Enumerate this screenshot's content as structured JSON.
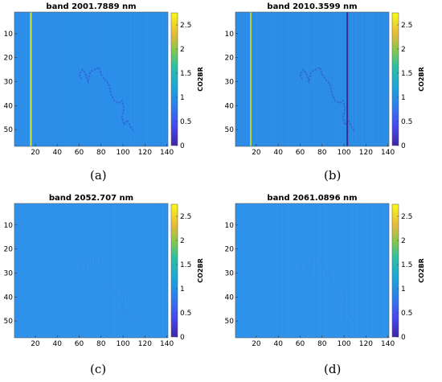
{
  "chart_data": [
    {
      "type": "heatmap",
      "caption": "(a)",
      "title": "band 2001.7889 nm",
      "colorbar_label": "CO2BR",
      "xlim": [
        1,
        141
      ],
      "ylim": [
        1,
        57
      ],
      "x_ticks": [
        "20",
        "40",
        "60",
        "80",
        "100",
        "120",
        "140"
      ],
      "y_ticks": [
        "10",
        "20",
        "30",
        "40",
        "50"
      ],
      "clim": [
        0,
        2.75
      ],
      "colorbar_ticks": [
        "0",
        "0.5",
        "1",
        "1.5",
        "2",
        "2.5"
      ],
      "base_value": 1.05,
      "stripes": [
        {
          "x": 16,
          "value": 2.6,
          "color": "#d9e43a"
        }
      ],
      "features": "dark boundary contour",
      "colormap": "parula",
      "feature_color": "#2f66d6",
      "field_color": "#2b8ee8"
    },
    {
      "type": "heatmap",
      "caption": "(b)",
      "title": "band 2010.3599 nm",
      "colorbar_label": "CO2BR",
      "xlim": [
        1,
        141
      ],
      "ylim": [
        1,
        57
      ],
      "x_ticks": [
        "20",
        "40",
        "60",
        "80",
        "100",
        "120",
        "140"
      ],
      "y_ticks": [
        "10",
        "20",
        "30",
        "40",
        "50"
      ],
      "clim": [
        0,
        2.75
      ],
      "colorbar_ticks": [
        "0",
        "0.5",
        "1",
        "1.5",
        "2",
        "2.5"
      ],
      "base_value": 1.05,
      "stripes": [
        {
          "x": 15,
          "value": 2.3,
          "color": "#b7d540"
        },
        {
          "x": 103,
          "value": 0.2,
          "color": "#3b2a9a"
        }
      ],
      "features": "dark boundary contour",
      "colormap": "parula",
      "feature_color": "#2f66d6",
      "field_color": "#2c8de6"
    },
    {
      "type": "heatmap",
      "caption": "(c)",
      "title": "band 2052.707 nm",
      "colorbar_label": "CO2BR",
      "xlim": [
        1,
        141
      ],
      "ylim": [
        1,
        57
      ],
      "x_ticks": [
        "20",
        "40",
        "60",
        "80",
        "100",
        "120",
        "140"
      ],
      "y_ticks": [
        "10",
        "20",
        "30",
        "40",
        "50"
      ],
      "clim": [
        0,
        2.75
      ],
      "colorbar_ticks": [
        "0",
        "0.5",
        "1",
        "1.5",
        "2",
        "2.5"
      ],
      "base_value": 1.05,
      "stripes": [],
      "features": "faint boundary contour",
      "colormap": "parula",
      "feature_color": "#2f7fe0",
      "field_color": "#2f93ec"
    },
    {
      "type": "heatmap",
      "caption": "(d)",
      "title": "band 2061.0896 nm",
      "colorbar_label": "CO2BR",
      "xlim": [
        1,
        141
      ],
      "ylim": [
        1,
        57
      ],
      "x_ticks": [
        "20",
        "40",
        "60",
        "80",
        "100",
        "120",
        "140"
      ],
      "y_ticks": [
        "10",
        "20",
        "30",
        "40",
        "50"
      ],
      "clim": [
        0,
        2.75
      ],
      "colorbar_ticks": [
        "0",
        "0.5",
        "1",
        "1.5",
        "2",
        "2.5"
      ],
      "base_value": 1.05,
      "stripes": [],
      "features": "faint boundary contour",
      "colormap": "parula",
      "feature_color": "#2f7fe0",
      "field_color": "#2f93ec"
    }
  ]
}
